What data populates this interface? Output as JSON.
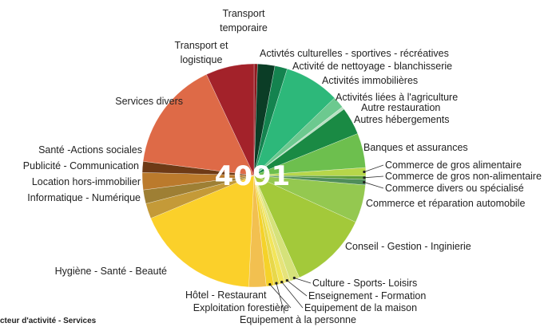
{
  "chart_data": {
    "type": "pie",
    "center_text": "4091",
    "caption": "cteur d'activité - Services",
    "categories": [
      "Transport temporaire",
      "Activtés culturelles - sportives - récréatives",
      "Activité de nettoyage - blanchisserie",
      "Activités immobilières",
      "Activités liées à l'agriculture",
      "Autre restauration",
      "Autres hébergements",
      "Banques et assurances",
      "Commerce de gros alimentaire",
      "Commerce de gros non-alimentaire",
      "Commerce divers ou spécialisé",
      "Commerce et réparation automobile",
      "Conseil - Gestion - Inginierie",
      "Culture - Sports- Loisirs",
      "Enseignement - Formation",
      "Equipement de la maison",
      "Equipement à la personne",
      "Exploitation forestière",
      "Hôtel - Restaurant",
      "Hygiène - Santé - Beauté",
      "Informatique - Numérique",
      "Location hors-immobilier",
      "Publicité - Communication",
      "Santé -Actions sociales",
      "Services divers",
      "Transport et logistique"
    ],
    "values": [
      0.5,
      2.5,
      1.8,
      8,
      1.7,
      0.4,
      4,
      5,
      1.2,
      0.5,
      0.8,
      5.5,
      11.5,
      1.4,
      0.8,
      0.8,
      0.8,
      1.1,
      2.5,
      18,
      2.2,
      2,
      2.5,
      1.6,
      16,
      7
    ],
    "colors": [
      "#8e1a1f",
      "#0b3d26",
      "#14834f",
      "#2db87a",
      "#6cc98f",
      "#b8e0c2",
      "#1a8a44",
      "#6dbf4e",
      "#b7d64a",
      "#5e9e3a",
      "#4f8d5a",
      "#94c850",
      "#a3c93a",
      "#d6e27a",
      "#e6e37a",
      "#f2e55a",
      "#e8d84a",
      "#f5d22a",
      "#f2c050",
      "#fbd02a",
      "#c49a38",
      "#9e7f34",
      "#bb7a2c",
      "#6e3a16",
      "#de6a47",
      "#a3222a"
    ]
  }
}
